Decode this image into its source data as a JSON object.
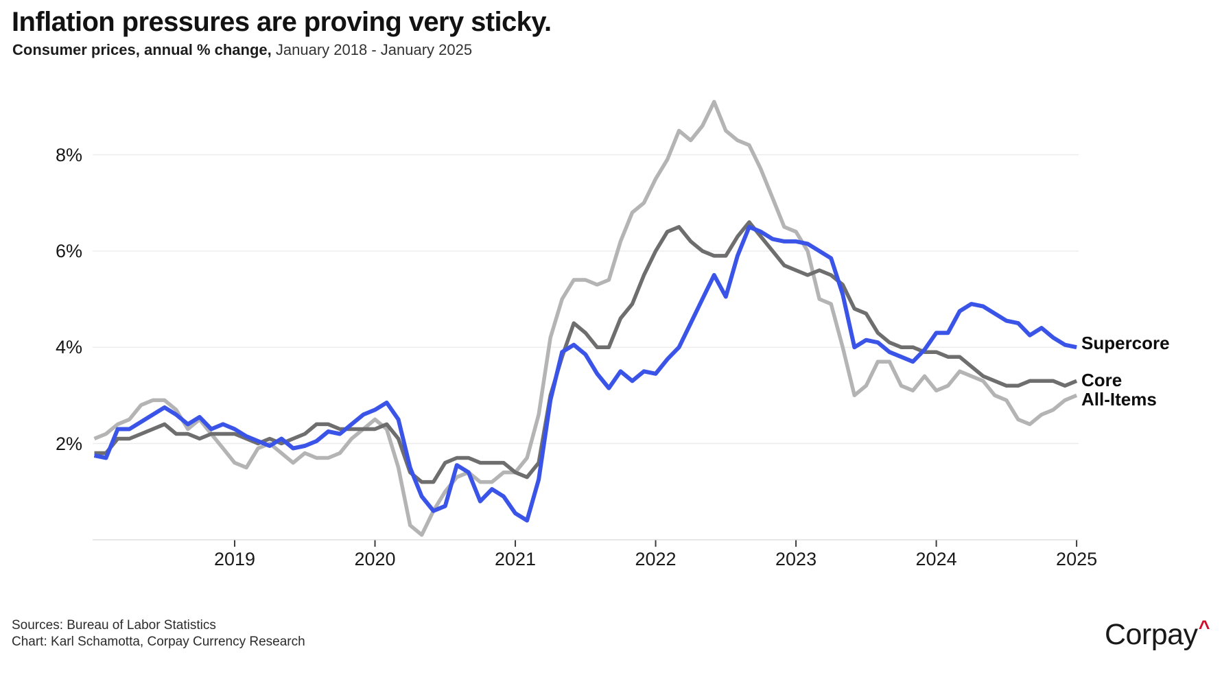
{
  "header": {
    "title": "Inflation pressures are proving very sticky.",
    "subtitle_bold": "Consumer prices, annual % change,",
    "subtitle_rest": " January 2018 - January 2025"
  },
  "footer": {
    "sources": "Sources: Bureau of Labor Statistics",
    "credit": "Chart: Karl Schamotta, Corpay Currency Research"
  },
  "logo": {
    "text": "Corpay",
    "caret": "^",
    "caret_color": "#CE0E2D"
  },
  "chart_data": {
    "type": "line",
    "title": "Inflation pressures are proving very sticky.",
    "subtitle": "Consumer prices, annual % change, January 2018 - January 2025",
    "x_start": "2018-01",
    "x_end": "2025-01",
    "x_frequency": "monthly",
    "x_tick_labels": [
      "2019",
      "2020",
      "2021",
      "2022",
      "2023",
      "2024",
      "2025"
    ],
    "y_ticks": [
      2,
      4,
      6,
      8
    ],
    "y_tick_labels": [
      "2%",
      "4%",
      "6%",
      "8%"
    ],
    "ylim": [
      0,
      9.6
    ],
    "grid": "horizontal-light",
    "legend_position": "right-end-of-line",
    "colors": {
      "grid": "#ECECEC",
      "baseline": "#E2E2E2",
      "tick": "#3C3C3C",
      "text": "#161616"
    },
    "series": [
      {
        "name": "Supercore",
        "color": "#3B54E8",
        "stroke_width": 6,
        "values": [
          1.75,
          1.7,
          2.3,
          2.3,
          2.45,
          2.6,
          2.75,
          2.6,
          2.4,
          2.55,
          2.3,
          2.4,
          2.3,
          2.15,
          2.05,
          1.95,
          2.1,
          1.9,
          1.95,
          2.05,
          2.25,
          2.2,
          2.4,
          2.6,
          2.7,
          2.85,
          2.5,
          1.5,
          0.9,
          0.6,
          0.7,
          1.55,
          1.4,
          0.8,
          1.05,
          0.9,
          0.55,
          0.4,
          1.25,
          2.9,
          3.9,
          4.05,
          3.85,
          3.45,
          3.15,
          3.5,
          3.3,
          3.5,
          3.45,
          3.75,
          4.0,
          4.5,
          5.0,
          5.5,
          5.05,
          5.9,
          6.5,
          6.4,
          6.25,
          6.2,
          6.2,
          6.15,
          6.0,
          5.85,
          5.1,
          4.0,
          4.15,
          4.1,
          3.9,
          3.8,
          3.7,
          3.95,
          4.3,
          4.3,
          4.75,
          4.9,
          4.85,
          4.7,
          4.55,
          4.5,
          4.25,
          4.4,
          4.2,
          4.05,
          4.0
        ]
      },
      {
        "name": "Core",
        "color": "#6E6E6E",
        "stroke_width": 5.5,
        "values": [
          1.8,
          1.8,
          2.1,
          2.1,
          2.2,
          2.3,
          2.4,
          2.2,
          2.2,
          2.1,
          2.2,
          2.2,
          2.2,
          2.1,
          2.0,
          2.1,
          2.0,
          2.1,
          2.2,
          2.4,
          2.4,
          2.3,
          2.3,
          2.3,
          2.3,
          2.4,
          2.1,
          1.4,
          1.2,
          1.2,
          1.6,
          1.7,
          1.7,
          1.6,
          1.6,
          1.6,
          1.4,
          1.3,
          1.6,
          3.0,
          3.8,
          4.5,
          4.3,
          4.0,
          4.0,
          4.6,
          4.9,
          5.5,
          6.0,
          6.4,
          6.5,
          6.2,
          6.0,
          5.9,
          5.9,
          6.3,
          6.6,
          6.3,
          6.0,
          5.7,
          5.6,
          5.5,
          5.6,
          5.5,
          5.3,
          4.8,
          4.7,
          4.3,
          4.1,
          4.0,
          4.0,
          3.9,
          3.9,
          3.8,
          3.8,
          3.6,
          3.4,
          3.3,
          3.2,
          3.2,
          3.3,
          3.3,
          3.3,
          3.2,
          3.3
        ]
      },
      {
        "name": "All-Items",
        "color": "#B4B4B4",
        "stroke_width": 5.5,
        "values": [
          2.1,
          2.2,
          2.4,
          2.5,
          2.8,
          2.9,
          2.9,
          2.7,
          2.3,
          2.5,
          2.2,
          1.9,
          1.6,
          1.5,
          1.9,
          2.0,
          1.8,
          1.6,
          1.8,
          1.7,
          1.7,
          1.8,
          2.1,
          2.3,
          2.5,
          2.3,
          1.5,
          0.3,
          0.1,
          0.6,
          1.0,
          1.3,
          1.4,
          1.2,
          1.2,
          1.4,
          1.4,
          1.7,
          2.6,
          4.2,
          5.0,
          5.4,
          5.4,
          5.3,
          5.4,
          6.2,
          6.8,
          7.0,
          7.5,
          7.9,
          8.5,
          8.3,
          8.6,
          9.1,
          8.5,
          8.3,
          8.2,
          7.7,
          7.1,
          6.5,
          6.4,
          6.0,
          5.0,
          4.9,
          4.0,
          3.0,
          3.2,
          3.7,
          3.7,
          3.2,
          3.1,
          3.4,
          3.1,
          3.2,
          3.5,
          3.4,
          3.3,
          3.0,
          2.9,
          2.5,
          2.4,
          2.6,
          2.7,
          2.9,
          3.0
        ]
      }
    ]
  }
}
